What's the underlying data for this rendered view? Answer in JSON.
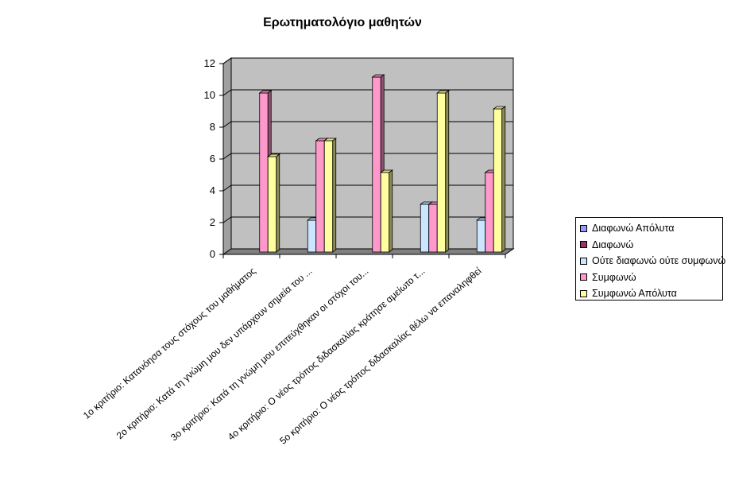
{
  "chart_data": {
    "type": "bar",
    "title": "Ερωτηματολόγιο μαθητών",
    "xlabel": "",
    "ylabel": "",
    "ylim": [
      0,
      12
    ],
    "yticks": [
      0,
      2,
      4,
      6,
      8,
      10,
      12
    ],
    "grid": true,
    "legend_position": "right",
    "categories": [
      "1ο κριτήριο: Κατανόησα τους στόχους του μαθήματος",
      "2ο κριτήριο: Κατά τη γνώμη μου δεν υπάρχουν σημεία του ...",
      "3ο κριτήριο: Κατά τη γνώμη μου επιτεύχθηκαν οι στόχοι του...",
      "4ο κριτήριο: Ο νέος τρόπος διδασκαλίας κράτησε αμείωτο τ...",
      "5ο κριτήριο: Ο νέος τρόπος διδασκαλίας θέλω να επαναληφθεί"
    ],
    "series": [
      {
        "name": "Διαφωνώ Απόλυτα",
        "color": "#9999ff",
        "values": [
          0,
          0,
          0,
          0,
          0
        ]
      },
      {
        "name": "Διαφωνώ",
        "color": "#993366",
        "values": [
          0,
          0,
          0,
          0,
          0
        ]
      },
      {
        "name": "Ούτε διαφωνώ ούτε συμφωνώ",
        "color": "#cce5ff",
        "values": [
          0,
          2,
          0,
          3,
          2
        ]
      },
      {
        "name": "Συμφωνώ",
        "color": "#ff99cc",
        "values": [
          10,
          7,
          11,
          3,
          5
        ]
      },
      {
        "name": "Συμφωνώ Απόλυτα",
        "color": "#ffffa0",
        "values": [
          6,
          7,
          5,
          10,
          9
        ]
      }
    ]
  }
}
